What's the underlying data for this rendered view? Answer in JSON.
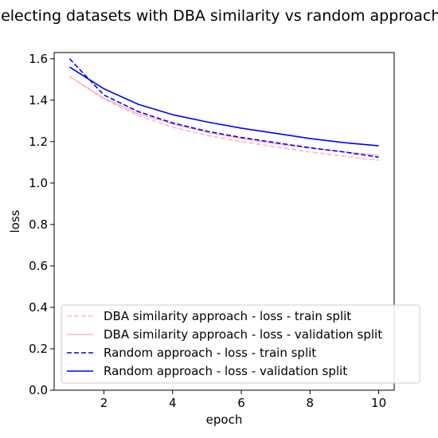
{
  "chart_data": {
    "type": "line",
    "title": "Loss - selecting datasets with DBA similarity vs random approach",
    "xlabel": "epoch",
    "ylabel": "loss",
    "xlim": [
      0.55,
      10.45
    ],
    "ylim": [
      0.0,
      1.63
    ],
    "xticks": [
      "2",
      "4",
      "6",
      "8",
      "10"
    ],
    "yticks": [
      "0.0",
      "0.2",
      "0.4",
      "0.6",
      "0.8",
      "1.0",
      "1.2",
      "1.4",
      "1.6"
    ],
    "x": [
      1,
      2,
      3,
      4,
      5,
      6,
      7,
      8,
      9,
      10
    ],
    "legend_position": "lower-left",
    "grid": false,
    "series": [
      {
        "name": "DBA similarity approach - loss - train split",
        "color": "#ffb6c1",
        "dash": "dashed",
        "values": [
          1.515,
          1.405,
          1.325,
          1.27,
          1.23,
          1.2,
          1.175,
          1.15,
          1.13,
          1.11
        ]
      },
      {
        "name": "DBA similarity approach - loss - validation split",
        "color": "#ffb6c1",
        "dash": "solid",
        "values": [
          1.515,
          1.41,
          1.335,
          1.285,
          1.245,
          1.215,
          1.19,
          1.17,
          1.15,
          1.135
        ]
      },
      {
        "name": "Random approach - loss - train split",
        "color": "#0000ff",
        "dash": "dashed",
        "values": [
          1.6,
          1.425,
          1.345,
          1.29,
          1.25,
          1.22,
          1.195,
          1.17,
          1.15,
          1.125
        ]
      },
      {
        "name": "Random approach - loss - validation split",
        "color": "#0000ff",
        "dash": "solid",
        "values": [
          1.56,
          1.455,
          1.38,
          1.33,
          1.295,
          1.265,
          1.24,
          1.215,
          1.195,
          1.18
        ]
      }
    ]
  }
}
